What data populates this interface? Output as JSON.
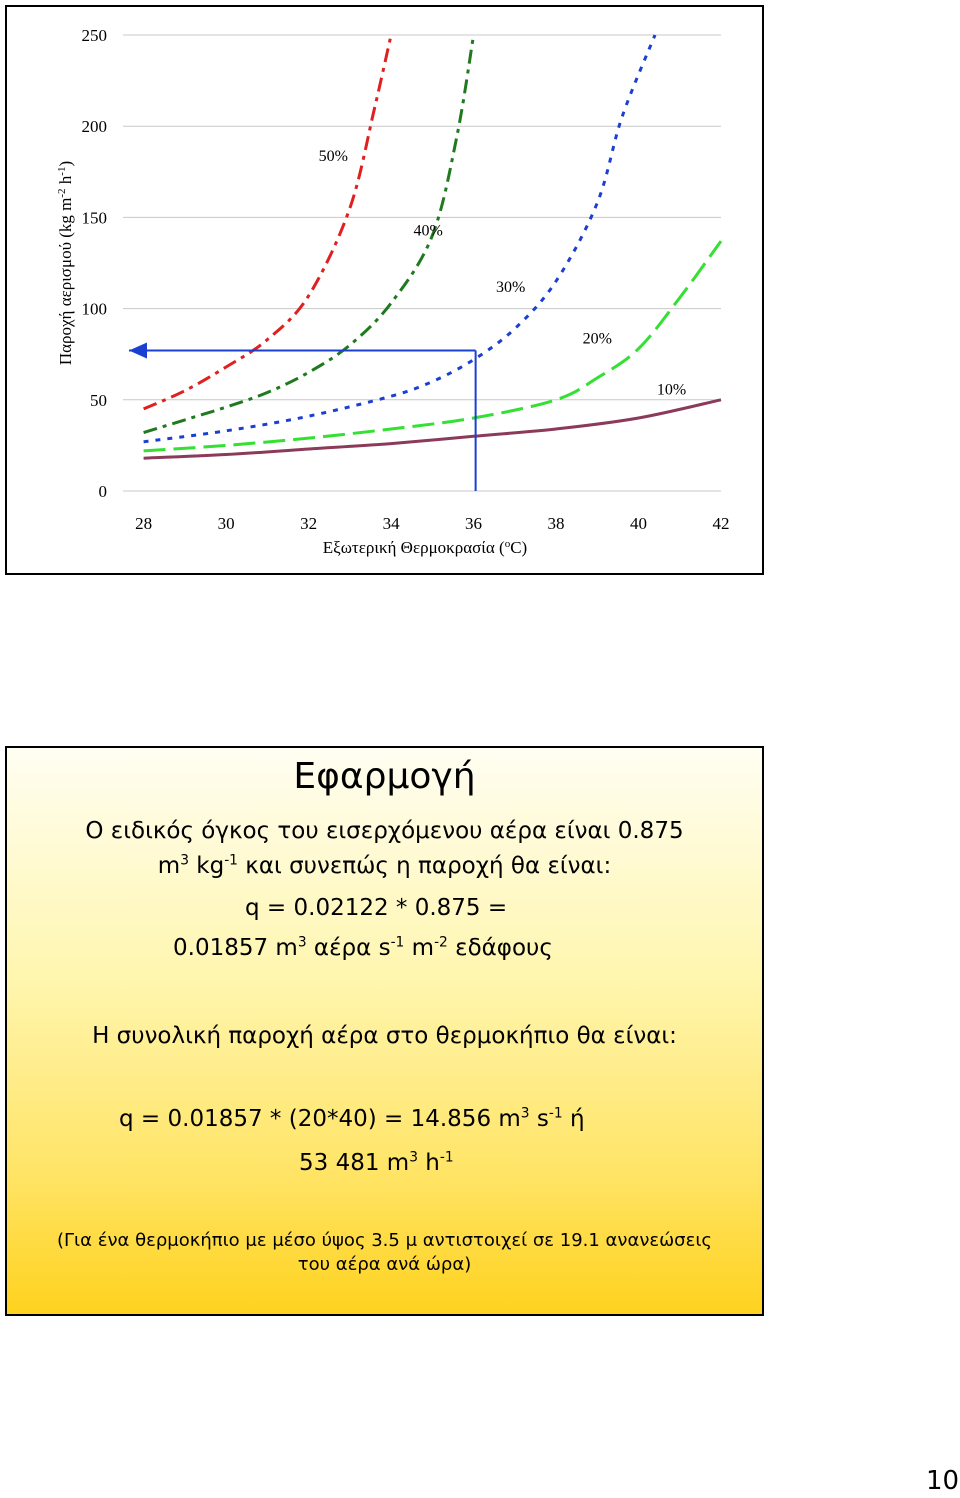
{
  "chart_data": {
    "type": "line",
    "title": "",
    "xlabel": "Εξωτερική Θερμοκρασία (",
    "xlabel_sup": "o",
    "xlabel_end": "C)",
    "ylabel": "Παροχή αερισμού (kg m",
    "ylabel_sup1": "-2",
    "ylabel_mid": " h",
    "ylabel_sup2": "-1",
    "ylabel_end": ")",
    "xlim": [
      27.5,
      42
    ],
    "ylim": [
      0,
      250
    ],
    "x_ticks": [
      "28",
      "30",
      "32",
      "34",
      "36",
      "38",
      "40",
      "42"
    ],
    "y_ticks": [
      "0",
      "50",
      "100",
      "150",
      "200",
      "250"
    ],
    "grid": "horizontal",
    "series": [
      {
        "name": "50%",
        "color": "#e0201e",
        "dash": "14 6 4 6",
        "x": [
          28,
          29,
          30,
          31,
          32,
          33,
          33.6,
          34
        ],
        "y": [
          45,
          55,
          68,
          83,
          107,
          155,
          210,
          250
        ]
      },
      {
        "name": "40%",
        "color": "#1f7a1f",
        "dash": "14 6 4 6",
        "x": [
          28,
          29,
          30,
          31,
          32,
          33,
          34,
          35,
          35.6,
          36
        ],
        "y": [
          32,
          39,
          46,
          54,
          65,
          80,
          103,
          140,
          195,
          250
        ]
      },
      {
        "name": "30%",
        "color": "#1a3fd1",
        "dash": "5 7",
        "x": [
          28,
          30,
          32,
          34,
          35,
          36,
          37,
          38,
          39,
          39.6,
          40.4
        ],
        "y": [
          27,
          33,
          41,
          52,
          60,
          72,
          89,
          115,
          158,
          205,
          250
        ]
      },
      {
        "name": "20%",
        "color": "#33e033",
        "dash": "22 8",
        "x": [
          28,
          30,
          32,
          34,
          36,
          38,
          39,
          40,
          41,
          42
        ],
        "y": [
          22,
          25,
          29,
          34,
          40,
          50,
          62,
          78,
          106,
          137
        ]
      },
      {
        "name": "10%",
        "color": "#8b3a5a",
        "dash": "",
        "x": [
          28,
          30,
          32,
          34,
          36,
          38,
          40,
          42
        ],
        "y": [
          18,
          20,
          23,
          26,
          30,
          34,
          40,
          50
        ]
      }
    ],
    "annotations": [
      {
        "text": "50%",
        "x": 32.6,
        "y": 181
      },
      {
        "text": "40%",
        "x": 34.9,
        "y": 140
      },
      {
        "text": "30%",
        "x": 36.9,
        "y": 109
      },
      {
        "text": "20%",
        "x": 39.0,
        "y": 81
      },
      {
        "text": "10%",
        "x": 40.8,
        "y": 53
      }
    ],
    "reference": {
      "x": 36.05,
      "y": 77
    }
  },
  "slide2": {
    "title": "Εφαρμογή",
    "l1": "Ο ειδικός όγκος του εισερχόμενου αέρα είναι 0.875",
    "l2a": "m",
    "l2b": "3",
    "l2c": " kg",
    "l2d": "-1",
    "l2e": " και συνεπώς η παροχή θα είναι:",
    "l3": "q = 0.02122 * 0.875 =",
    "l4a": "0.01857 m",
    "l4b": "3",
    "l4c": " αέρα s",
    "l4d": "-1",
    "l4e": " m",
    "l4f": "-2",
    "l4g": " εδάφους",
    "l5": "Η συνολική παροχή αέρα στο θερμοκήπιο θα είναι:",
    "l6a": "q = 0.01857 * (20*40) = 14.856 m",
    "l6b": "3",
    "l6c": " s",
    "l6d": "-1",
    "l6e": " ή",
    "l7a": "53 481 m",
    "l7b": "3",
    "l7c": " h",
    "l7d": "-1",
    "l8": "(Για ένα θερμοκήπιο με μέσο ύψος 3.5 μ αντιστοιχεί σε 19.1 ανανεώσεις",
    "l9": "του αέρα ανά ώρα)"
  },
  "page_number": "10"
}
